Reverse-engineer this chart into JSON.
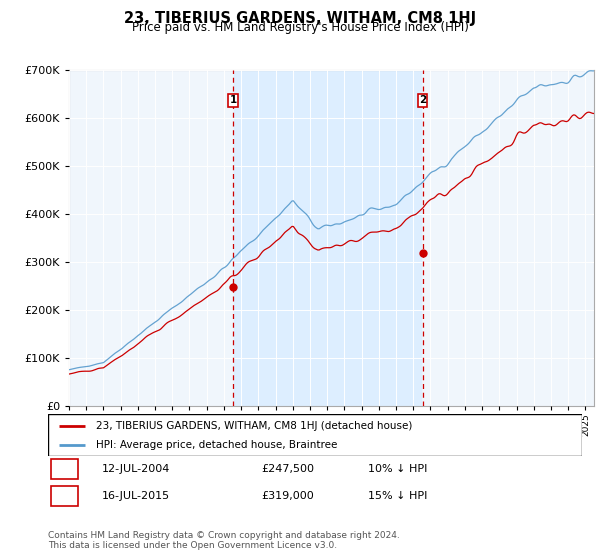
{
  "title": "23, TIBERIUS GARDENS, WITHAM, CM8 1HJ",
  "subtitle": "Price paid vs. HM Land Registry's House Price Index (HPI)",
  "sale1_year": 2004.54,
  "sale1_price": 247500,
  "sale1_label": "1",
  "sale2_year": 2015.54,
  "sale2_price": 319000,
  "sale2_label": "2",
  "sale_color": "#cc0000",
  "hpi_color": "#5599cc",
  "price_color": "#cc0000",
  "vline_color": "#cc0000",
  "fill_color": "#ddeeff",
  "background_color": "#eef4fb",
  "legend_line1": "23, TIBERIUS GARDENS, WITHAM, CM8 1HJ (detached house)",
  "legend_line2": "HPI: Average price, detached house, Braintree",
  "note1_label": "1",
  "note1_date": "12-JUL-2004",
  "note1_price": "£247,500",
  "note1_rel": "10% ↓ HPI",
  "note2_label": "2",
  "note2_date": "16-JUL-2015",
  "note2_price": "£319,000",
  "note2_rel": "15% ↓ HPI",
  "footer": "Contains HM Land Registry data © Crown copyright and database right 2024.\nThis data is licensed under the Open Government Licence v3.0.",
  "ylim_min": 0,
  "ylim_max": 700000,
  "xmin": 1995,
  "xmax": 2025.5
}
